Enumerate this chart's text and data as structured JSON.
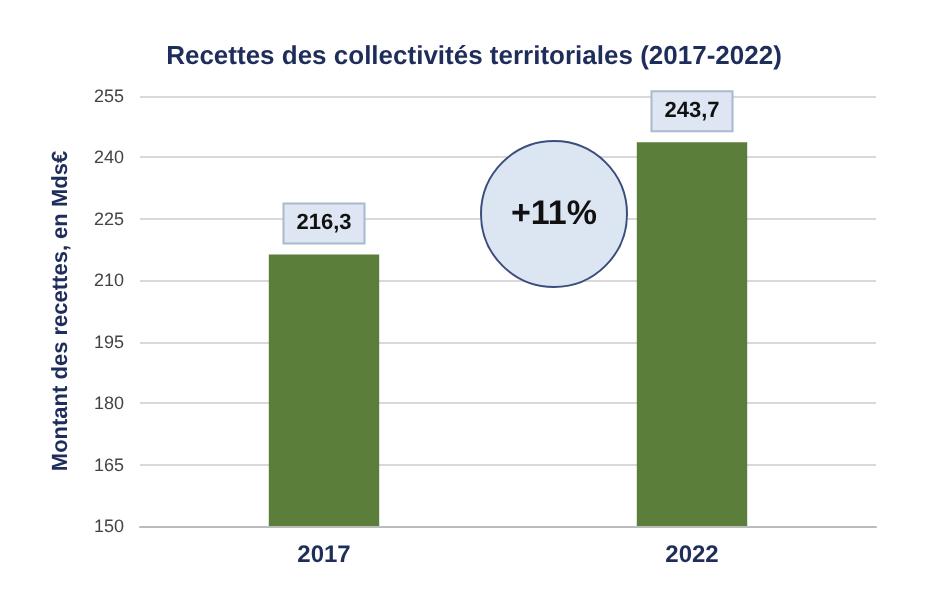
{
  "chart_data": {
    "type": "bar",
    "title": "Recettes des collectivités territoriales (2017-2022)",
    "ylabel": "Montant des recettes, en Mds€",
    "categories": [
      "2017",
      "2022"
    ],
    "values": [
      216.3,
      243.7
    ],
    "color": "#5b7f3b",
    "value_labels": [
      "216,3",
      "243,7"
    ],
    "ylim": [
      150,
      255
    ],
    "yticks": [
      150,
      165,
      180,
      195,
      210,
      225,
      240,
      255
    ],
    "grid": "y",
    "annotations": [
      "+11%"
    ]
  }
}
